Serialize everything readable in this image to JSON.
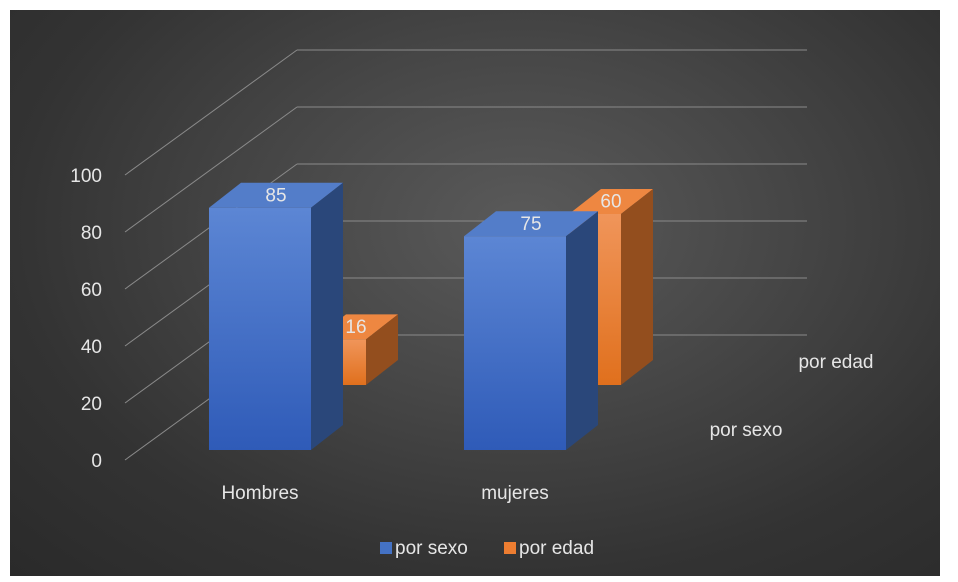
{
  "chart_data": {
    "type": "bar",
    "subtype": "3d-column",
    "categories": [
      "Hombres",
      "mujeres"
    ],
    "series": [
      {
        "name": "por sexo",
        "values": [
          85,
          75
        ],
        "color": "#4472c4"
      },
      {
        "name": "por edad",
        "values": [
          16,
          60
        ],
        "color": "#ed7d31"
      }
    ],
    "yticks": [
      "0",
      "20",
      "40",
      "60",
      "80",
      "100"
    ],
    "ylim": [
      0,
      100
    ],
    "grid": true,
    "legend_position": "bottom",
    "data_labels": true,
    "background": "#3a3a3a"
  }
}
